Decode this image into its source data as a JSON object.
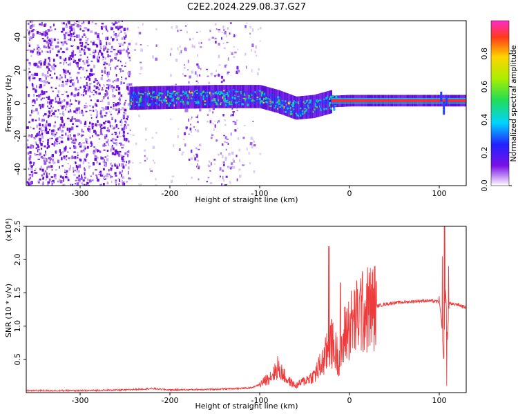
{
  "title": "C2E2.2024.229.08.37.G27",
  "colors": {
    "snr_line": "#ee3a3a",
    "spectral_band": [
      "#7a12e6",
      "#00c8d8",
      "#3ad85a",
      "#ff2b3b"
    ]
  },
  "chart_data": [
    {
      "type": "heatmap",
      "xlabel": "Height of straight line (km)",
      "ylabel": "Frequency (Hz)",
      "xlim": [
        -360,
        130
      ],
      "ylim": [
        -50,
        50
      ],
      "xticks": [
        -300,
        -200,
        -100,
        0,
        100
      ],
      "yticks": [
        -40,
        -20,
        0,
        20,
        40
      ],
      "colorbar": {
        "label": "Normalized spectral amplitude",
        "range": [
          0.0,
          1.0
        ],
        "ticks": [
          0.0,
          0.2,
          0.4,
          0.6,
          0.8
        ],
        "tick_labels": [
          "0.0",
          "0.2",
          "0.4",
          "0.6",
          "0.8"
        ]
      },
      "noise_regions": [
        {
          "x": [
            -360,
            -245
          ],
          "density": "high"
        },
        {
          "x": [
            -245,
            -215
          ],
          "density": "low"
        },
        {
          "x": [
            -200,
            -185
          ],
          "density": "low"
        },
        {
          "x": [
            -185,
            -165
          ],
          "density": "medium"
        },
        {
          "x": [
            -160,
            -125
          ],
          "density": "medium"
        },
        {
          "x": [
            -125,
            -100
          ],
          "density": "low"
        }
      ],
      "signal_band_center_hz": [
        {
          "x": -245,
          "y": 3
        },
        {
          "x": -150,
          "y": 4
        },
        {
          "x": -100,
          "y": 4
        },
        {
          "x": -80,
          "y": 1
        },
        {
          "x": -60,
          "y": -3
        },
        {
          "x": -40,
          "y": -2
        },
        {
          "x": -20,
          "y": 1
        },
        {
          "x": 0,
          "y": 1.5
        },
        {
          "x": 130,
          "y": 1.5
        }
      ]
    },
    {
      "type": "line",
      "xlabel": "Height of straight line (km)",
      "ylabel": "SNR (10 * v/v)",
      "y_multiplier": "(x10⁴)",
      "xlim": [
        -360,
        130
      ],
      "ylim": [
        0,
        2.5
      ],
      "xticks": [
        -300,
        -200,
        -100,
        0,
        100
      ],
      "yticks": [
        0.5,
        1.0,
        1.5,
        2.0,
        2.5
      ],
      "ytick_labels": [
        "0.5",
        "1.0",
        "1.5",
        "2.0",
        "2.5"
      ],
      "series": [
        {
          "values_x": [
            -360,
            -300,
            -250,
            -220,
            -200,
            -150,
            -110,
            -100,
            -90,
            -80,
            -75,
            -70,
            -60,
            -50,
            -40,
            -30,
            -25,
            -20,
            -15,
            -10,
            -5,
            0,
            10,
            20,
            30,
            40,
            50,
            60,
            70,
            80,
            90,
            95,
            100,
            103,
            105,
            107,
            109,
            111,
            115,
            120,
            125,
            130
          ],
          "values_y": [
            0.03,
            0.03,
            0.04,
            0.06,
            0.04,
            0.05,
            0.07,
            0.12,
            0.22,
            0.35,
            0.3,
            0.2,
            0.1,
            0.18,
            0.25,
            0.45,
            0.6,
            0.75,
            0.6,
            0.5,
            0.9,
            1.0,
            1.15,
            1.25,
            1.3,
            1.33,
            1.35,
            1.36,
            1.37,
            1.38,
            1.38,
            1.37,
            1.37,
            1.0,
            0.45,
            1.6,
            0.8,
            1.35,
            1.32,
            1.33,
            1.3,
            1.28
          ]
        }
      ],
      "spikes": [
        {
          "x": -23,
          "y": 2.2
        },
        {
          "x": -20,
          "y": 1.1
        },
        {
          "x": -10,
          "y": 1.65
        },
        {
          "x": 12,
          "y": 1.72
        },
        {
          "x": -80,
          "y": 0.55
        },
        {
          "x": 100,
          "y": 1.45
        },
        {
          "x": 103,
          "y": 2.05
        },
        {
          "x": 106,
          "y": 2.5
        },
        {
          "x": 108,
          "y": 0.1
        },
        {
          "x": 110,
          "y": 1.9
        }
      ]
    }
  ]
}
